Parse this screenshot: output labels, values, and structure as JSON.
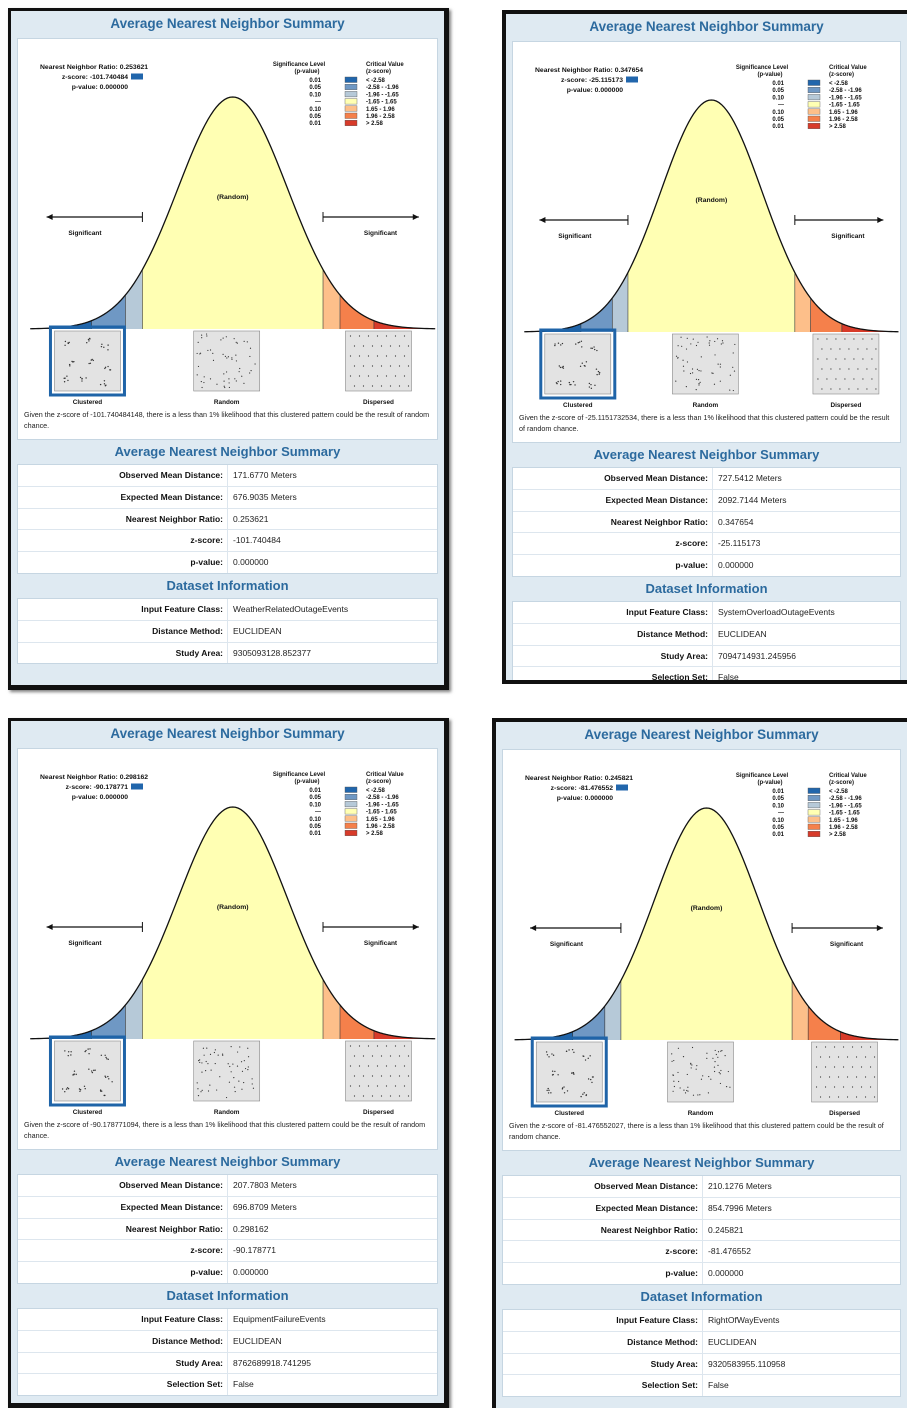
{
  "colors": {
    "curve_fill": "#ffffb3",
    "title": "#2c6a9e",
    "dark_blue": "#2166ac",
    "mid_blue": "#6f98c4",
    "light_blue": "#b6c9d8",
    "light_orange": "#fdbf8a",
    "orange": "#f5804b",
    "red": "#d83b2a"
  },
  "panels": [
    {
      "title": "Average Nearest Neighbor Summary",
      "ratio_line": "Nearest Neighbor Ratio: 0.253621",
      "zscore_line": "z-score: -101.740484",
      "pvalue_line": "p-value: 0.000000",
      "message": "Given the z-score of -101.740484148, there is a less than 1% likelihood that this clustered pattern could be the result of random chance.",
      "summary_title": "Average Nearest Neighbor Summary",
      "summary_rows": [
        {
          "label": "Observed Mean Distance:",
          "value": "171.6770 Meters"
        },
        {
          "label": "Expected Mean Distance:",
          "value": "676.9035 Meters"
        },
        {
          "label": "Nearest Neighbor Ratio:",
          "value": "0.253621"
        },
        {
          "label": "z-score:",
          "value": "-101.740484"
        },
        {
          "label": "p-value:",
          "value": "0.000000"
        }
      ],
      "dataset_title": "Dataset Information",
      "dataset_rows": [
        {
          "label": "Input Feature Class:",
          "value": "WeatherRelatedOutageEvents"
        },
        {
          "label": "Distance Method:",
          "value": "EUCLIDEAN"
        },
        {
          "label": "Study Area:",
          "value": "9305093128.852377"
        }
      ]
    },
    {
      "title": "Average Nearest Neighbor Summary",
      "ratio_line": "Nearest Neighbor Ratio: 0.347654",
      "zscore_line": "z-score: -25.115173",
      "pvalue_line": "p-value: 0.000000",
      "message": "Given the z-score of -25.1151732534, there is a less than 1% likelihood that this clustered pattern could be the result of random chance.",
      "summary_title": "Average Nearest Neighbor Summary",
      "summary_rows": [
        {
          "label": "Observed Mean Distance:",
          "value": "727.5412 Meters"
        },
        {
          "label": "Expected Mean Distance:",
          "value": "2092.7144 Meters"
        },
        {
          "label": "Nearest Neighbor Ratio:",
          "value": "0.347654"
        },
        {
          "label": "z-score:",
          "value": "-25.115173"
        },
        {
          "label": "p-value:",
          "value": "0.000000"
        }
      ],
      "dataset_title": "Dataset Information",
      "dataset_rows": [
        {
          "label": "Input Feature Class:",
          "value": "SystemOverloadOutageEvents"
        },
        {
          "label": "Distance Method:",
          "value": "EUCLIDEAN"
        },
        {
          "label": "Study Area:",
          "value": "7094714931.245956"
        },
        {
          "label": "Selection Set:",
          "value": "False"
        }
      ]
    },
    {
      "title": "Average Nearest Neighbor Summary",
      "ratio_line": "Nearest Neighbor Ratio: 0.298162",
      "zscore_line": "z-score: -90.178771",
      "pvalue_line": "p-value: 0.000000",
      "message": "Given the z-score of -90.178771094, there is a less than 1% likelihood that this clustered pattern could be the result of random chance.",
      "summary_title": "Average Nearest Neighbor Summary",
      "summary_rows": [
        {
          "label": "Observed Mean Distance:",
          "value": "207.7803 Meters"
        },
        {
          "label": "Expected Mean Distance:",
          "value": "696.8709 Meters"
        },
        {
          "label": "Nearest Neighbor Ratio:",
          "value": "0.298162"
        },
        {
          "label": "z-score:",
          "value": "-90.178771"
        },
        {
          "label": "p-value:",
          "value": "0.000000"
        }
      ],
      "dataset_title": "Dataset Information",
      "dataset_rows": [
        {
          "label": "Input Feature Class:",
          "value": "EquipmentFailureEvents"
        },
        {
          "label": "Distance Method:",
          "value": "EUCLIDEAN"
        },
        {
          "label": "Study Area:",
          "value": "8762689918.741295"
        },
        {
          "label": "Selection Set:",
          "value": "False"
        }
      ]
    },
    {
      "title": "Average Nearest Neighbor Summary",
      "ratio_line": "Nearest Neighbor Ratio: 0.245821",
      "zscore_line": "z-score: -81.476552",
      "pvalue_line": "p-value: 0.000000",
      "message": "Given the z-score of -81.476552027, there is a less than 1% likelihood that this clustered pattern could be the result of random chance.",
      "summary_title": "Average Nearest Neighbor Summary",
      "summary_rows": [
        {
          "label": "Observed Mean Distance:",
          "value": "210.1276 Meters"
        },
        {
          "label": "Expected Mean Distance:",
          "value": "854.7996 Meters"
        },
        {
          "label": "Nearest Neighbor Ratio:",
          "value": "0.245821"
        },
        {
          "label": "z-score:",
          "value": "-81.476552"
        },
        {
          "label": "p-value:",
          "value": "0.000000"
        }
      ],
      "dataset_title": "Dataset Information",
      "dataset_rows": [
        {
          "label": "Input Feature Class:",
          "value": "RightOfWayEvents"
        },
        {
          "label": "Distance Method:",
          "value": "EUCLIDEAN"
        },
        {
          "label": "Study Area:",
          "value": "9320583955.110958"
        },
        {
          "label": "Selection Set:",
          "value": "False"
        }
      ]
    }
  ],
  "legend": {
    "sig_header": [
      "Significance Level",
      "(p-value)"
    ],
    "crit_header": [
      "Critical Value",
      "(z-score)"
    ],
    "p_values": [
      "0.01",
      "0.05",
      "0.10",
      "---",
      "0.10",
      "0.05",
      "0.01"
    ],
    "z_ranges": [
      "< -2.58",
      "-2.58 - -1.96",
      "-1.96 - -1.65",
      "-1.65 - 1.65",
      "1.65 - 1.96",
      "1.96 - 2.58",
      "> 2.58"
    ]
  },
  "curve_labels": {
    "random": "(Random)",
    "significant_left": "Significant",
    "significant_right": "Significant"
  },
  "pattern_labels": [
    "Clustered",
    "Random",
    "Dispersed"
  ]
}
